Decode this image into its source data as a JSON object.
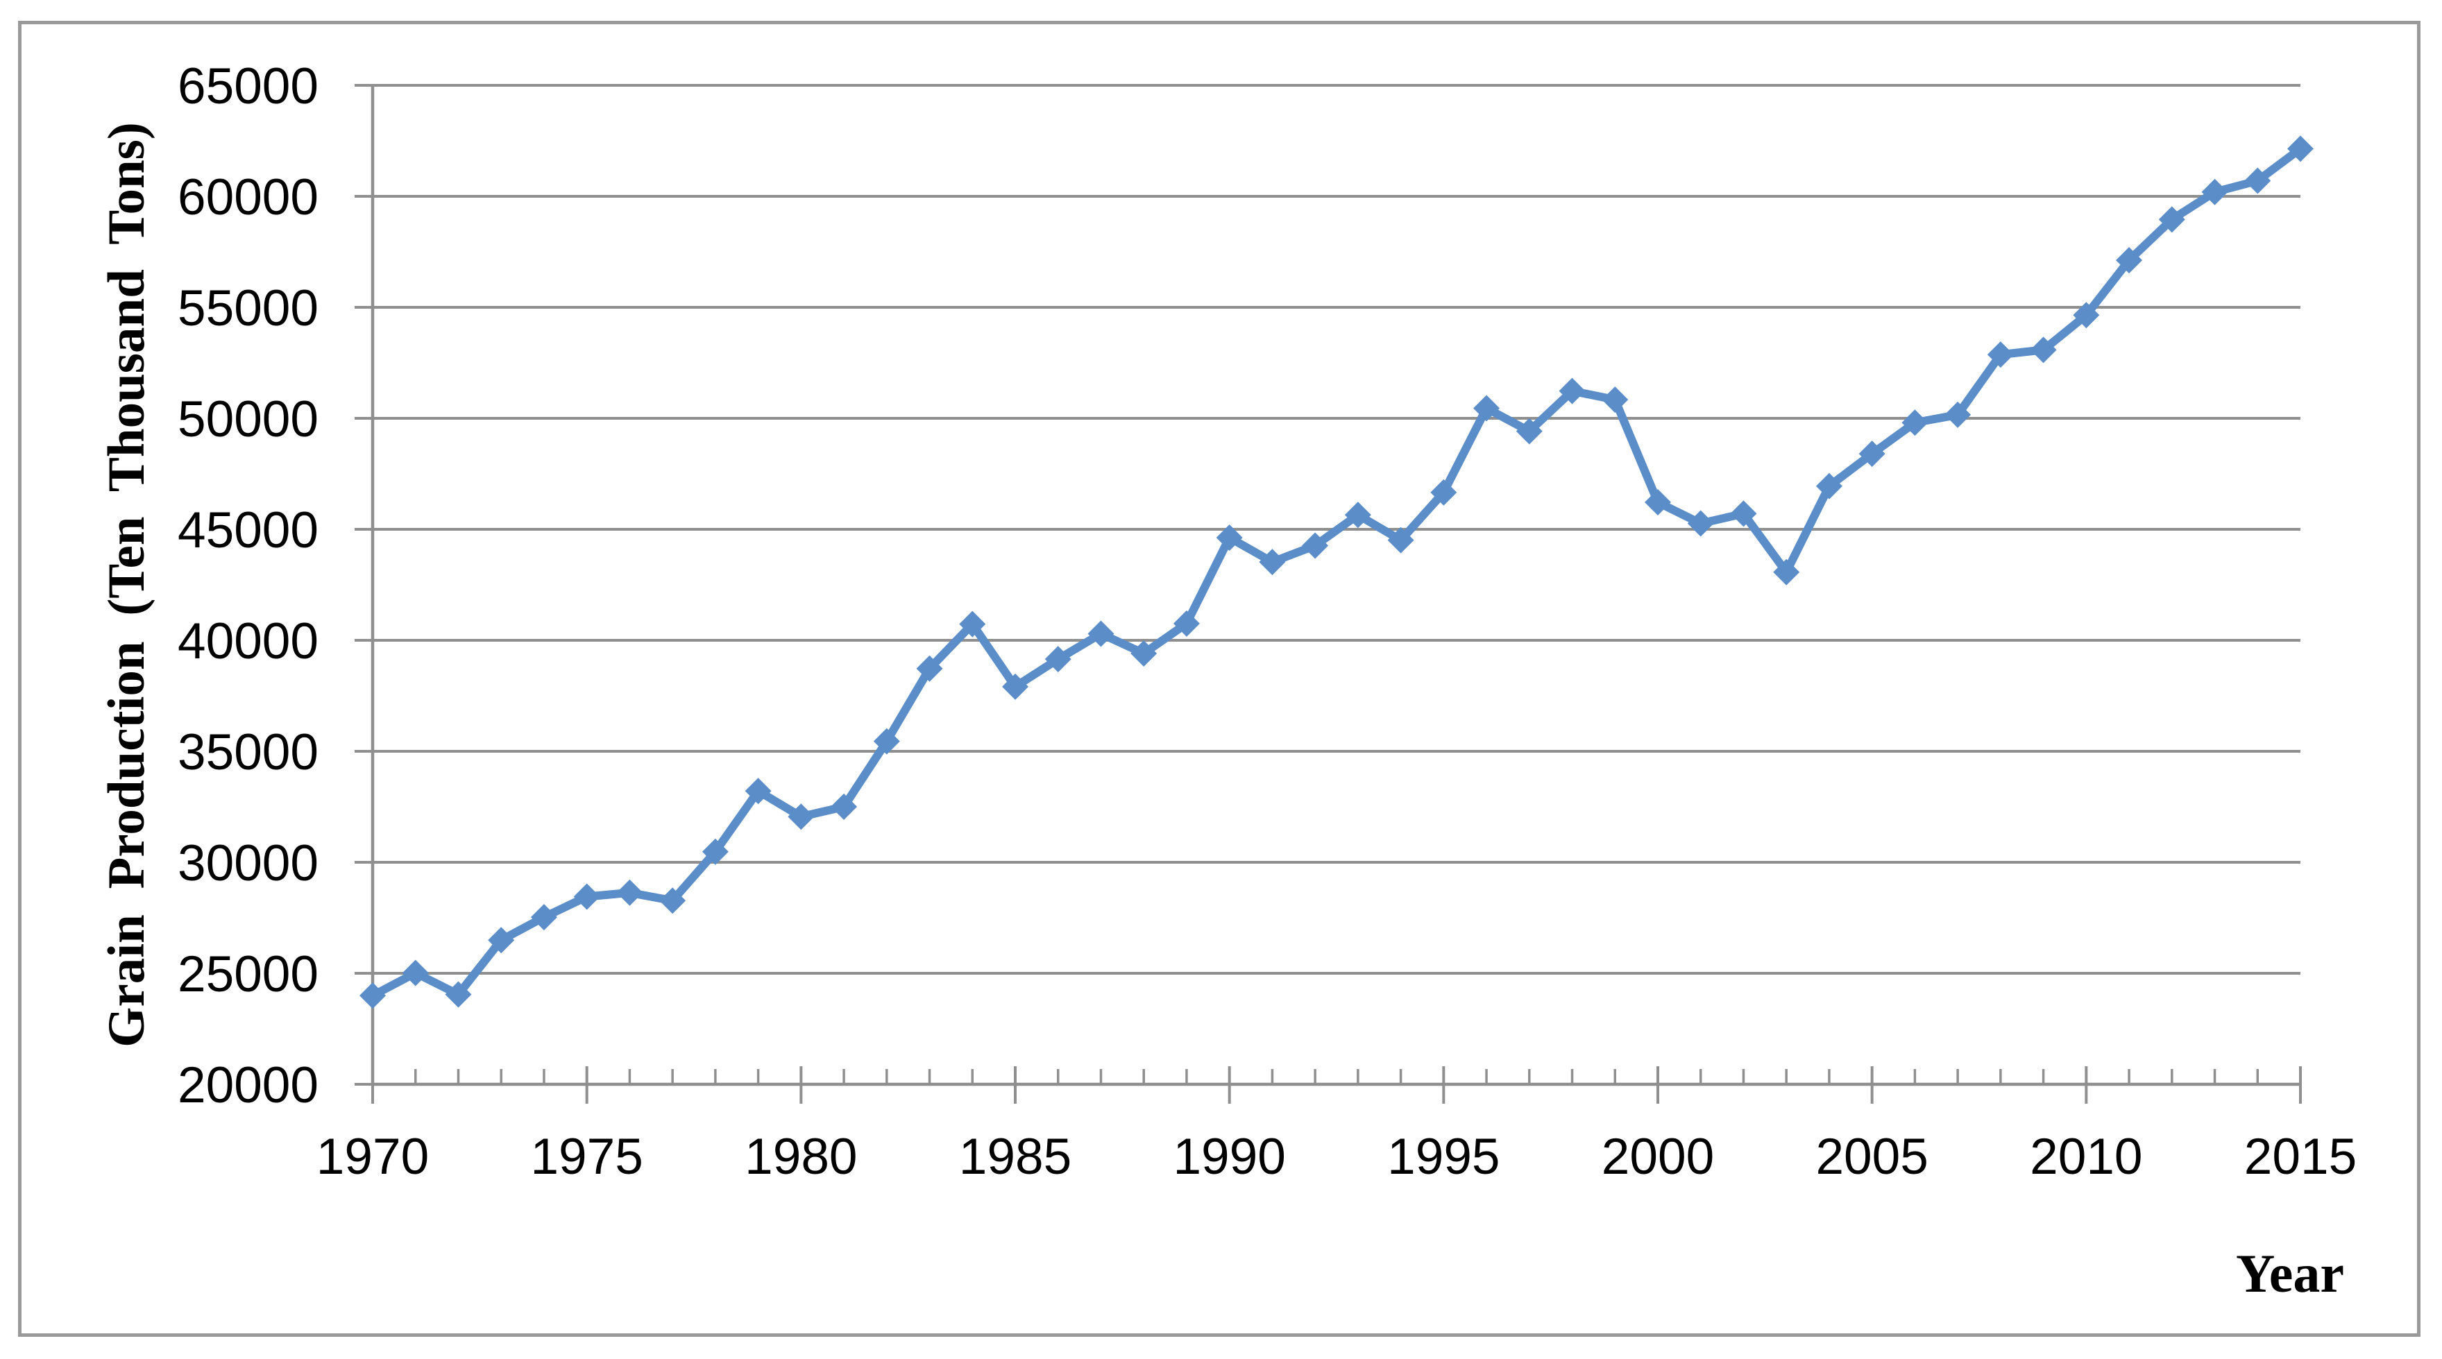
{
  "figure": {
    "background_color": "#ffffff",
    "border_color": "#9a9a9a"
  },
  "chart_data": {
    "type": "line",
    "title": "",
    "xlabel": "Year",
    "ylabel": "Grain Production (Ten Thousand Tons)",
    "series": [
      {
        "name": "Grain Production",
        "x": [
          1970,
          1971,
          1972,
          1973,
          1974,
          1975,
          1976,
          1977,
          1978,
          1979,
          1980,
          1981,
          1982,
          1983,
          1984,
          1985,
          1986,
          1987,
          1988,
          1989,
          1990,
          1991,
          1992,
          1993,
          1994,
          1995,
          1996,
          1997,
          1998,
          1999,
          2000,
          2001,
          2002,
          2003,
          2004,
          2005,
          2006,
          2007,
          2008,
          2009,
          2010,
          2011,
          2012,
          2013,
          2014,
          2015
        ],
        "values": [
          23996,
          25014,
          24048,
          26494,
          27527,
          28452,
          28631,
          28273,
          30477,
          33212,
          32056,
          32502,
          35450,
          38728,
          40731,
          37911,
          39151,
          40298,
          39408,
          40755,
          44624,
          43529,
          44266,
          45649,
          44510,
          46662,
          50454,
          49417,
          51230,
          50839,
          46218,
          45264,
          45706,
          43070,
          46947,
          48402,
          49804,
          50160,
          52871,
          53082,
          54648,
          57121,
          58958,
          60194,
          60703,
          62144
        ]
      }
    ],
    "xlim": [
      1970,
      2015
    ],
    "ylim": [
      20000,
      65000
    ],
    "x_major_tick_step": 5,
    "x_minor_tick_step": 1,
    "y_tick_step": 5000,
    "x_tick_labels": [
      "1970",
      "1975",
      "1980",
      "1985",
      "1990",
      "1995",
      "2000",
      "2005",
      "2010",
      "2015"
    ],
    "y_tick_labels": [
      "20000",
      "25000",
      "30000",
      "35000",
      "40000",
      "45000",
      "50000",
      "55000",
      "60000",
      "65000"
    ],
    "grid": "horizontal",
    "legend": "none",
    "marker": "diamond",
    "style": {
      "line_color": "#5b8ec9",
      "marker_color": "#5b8ec9",
      "gridline_color": "#8f8f8f",
      "axis_color": "#8f8f8f",
      "tick_label_color": "#000000",
      "axis_title_color": "#000000"
    }
  }
}
